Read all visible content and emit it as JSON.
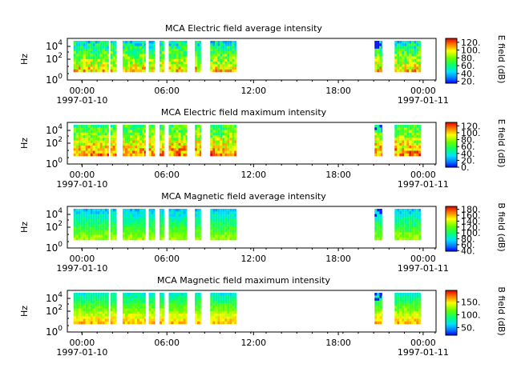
{
  "chart_data": [
    {
      "type": "heatmap",
      "title": "MCA  Electric field average intensity",
      "ylabel": "Hz",
      "yticks": [
        {
          "base": "10",
          "exp": "0"
        },
        {
          "base": "10",
          "exp": "2"
        },
        {
          "base": "10",
          "exp": "4"
        }
      ],
      "xticks": [
        "00:00",
        "06:00",
        "12:00",
        "18:00",
        "00:00"
      ],
      "x_start_date": "1997-01-10",
      "x_end_date": "1997-01-11",
      "colorbar": {
        "label": "E field (dB)",
        "range": [
          15,
          130
        ],
        "ticks": [
          "20.",
          "40.",
          "60.",
          "80.",
          "100.",
          "120."
        ]
      },
      "palette": "low",
      "data_segments_utc_hours": [
        [
          0.4,
          2.7
        ],
        [
          2.8,
          3.2
        ],
        [
          3.6,
          5.1
        ],
        [
          5.3,
          5.7
        ],
        [
          6.0,
          6.3
        ],
        [
          6.6,
          7.8
        ],
        [
          8.3,
          8.7
        ],
        [
          9.3,
          11.0
        ],
        [
          20.0,
          20.5
        ],
        [
          21.3,
          23.0
        ]
      ]
    },
    {
      "type": "heatmap",
      "title": "MCA  Electric field maximum intensity",
      "ylabel": "Hz",
      "yticks": [
        {
          "base": "10",
          "exp": "0"
        },
        {
          "base": "10",
          "exp": "2"
        },
        {
          "base": "10",
          "exp": "4"
        }
      ],
      "xticks": [
        "00:00",
        "06:00",
        "12:00",
        "18:00",
        "00:00"
      ],
      "x_start_date": "1997-01-10",
      "x_end_date": "1997-01-11",
      "colorbar": {
        "label": "E field (dB)",
        "range": [
          0,
          130
        ],
        "ticks": [
          "0.",
          "20.",
          "40.",
          "60.",
          "80.",
          "100.",
          "120."
        ]
      },
      "palette": "high",
      "data_segments_utc_hours": [
        [
          0.4,
          2.7
        ],
        [
          2.8,
          3.2
        ],
        [
          3.6,
          5.1
        ],
        [
          5.3,
          5.7
        ],
        [
          6.0,
          6.3
        ],
        [
          6.6,
          7.8
        ],
        [
          8.3,
          8.7
        ],
        [
          9.3,
          11.0
        ],
        [
          20.0,
          20.5
        ],
        [
          21.3,
          23.0
        ]
      ]
    },
    {
      "type": "heatmap",
      "title": "MCA  Magnetic field average intensity",
      "ylabel": "Hz",
      "yticks": [
        {
          "base": "10",
          "exp": "0"
        },
        {
          "base": "10",
          "exp": "2"
        },
        {
          "base": "10",
          "exp": "4"
        }
      ],
      "xticks": [
        "00:00",
        "06:00",
        "12:00",
        "18:00",
        "00:00"
      ],
      "x_start_date": "1997-01-10",
      "x_end_date": "1997-01-11",
      "colorbar": {
        "label": "B field (dB)",
        "range": [
          38,
          190
        ],
        "ticks": [
          "40.",
          "60.",
          "80.",
          "100.",
          "120.",
          "140.",
          "160.",
          "180."
        ]
      },
      "palette": "mag",
      "data_segments_utc_hours": [
        [
          0.4,
          2.7
        ],
        [
          2.8,
          3.2
        ],
        [
          3.6,
          5.1
        ],
        [
          5.3,
          5.7
        ],
        [
          6.0,
          6.3
        ],
        [
          6.6,
          7.8
        ],
        [
          8.3,
          8.7
        ],
        [
          9.3,
          11.0
        ],
        [
          20.0,
          20.5
        ],
        [
          21.3,
          23.0
        ]
      ]
    },
    {
      "type": "heatmap",
      "title": "MCA  Magnetic field maximum intensity",
      "ylabel": "Hz",
      "yticks": [
        {
          "base": "10",
          "exp": "0"
        },
        {
          "base": "10",
          "exp": "2"
        },
        {
          "base": "10",
          "exp": "4"
        }
      ],
      "xticks": [
        "00:00",
        "06:00",
        "12:00",
        "18:00",
        "00:00"
      ],
      "x_start_date": "1997-01-10",
      "x_end_date": "1997-01-11",
      "colorbar": {
        "label": "B field (dB)",
        "range": [
          20,
          195
        ],
        "ticks": [
          "50.",
          "100.",
          "150."
        ]
      },
      "palette": "magmax",
      "data_segments_utc_hours": [
        [
          0.4,
          2.7
        ],
        [
          2.8,
          3.2
        ],
        [
          3.6,
          5.1
        ],
        [
          5.3,
          5.7
        ],
        [
          6.0,
          6.3
        ],
        [
          6.6,
          7.8
        ],
        [
          8.3,
          8.7
        ],
        [
          9.3,
          11.0
        ],
        [
          20.0,
          20.5
        ],
        [
          21.3,
          23.0
        ]
      ]
    }
  ]
}
